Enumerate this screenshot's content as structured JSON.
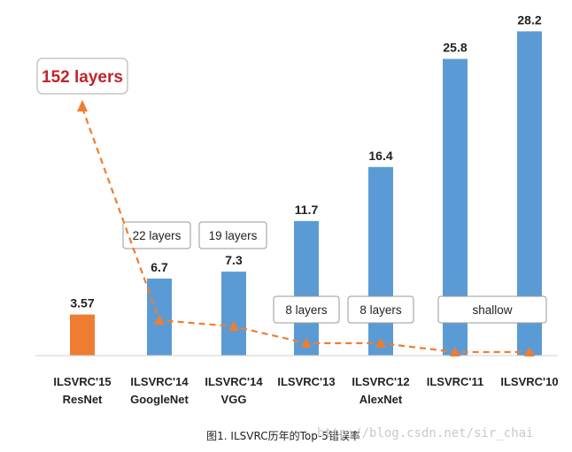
{
  "chart_data": {
    "type": "bar",
    "categories": [
      [
        "ILSVRC'15",
        "ResNet"
      ],
      [
        "ILSVRC'14",
        "GoogleNet"
      ],
      [
        "ILSVRC'14",
        "VGG"
      ],
      [
        "ILSVRC'13"
      ],
      [
        "ILSVRC'12",
        "AlexNet"
      ],
      [
        "ILSVRC'11"
      ],
      [
        "ILSVRC'10"
      ]
    ],
    "values": [
      3.57,
      6.7,
      7.3,
      11.7,
      16.4,
      25.8,
      28.2
    ],
    "value_labels": [
      "3.57",
      "6.7",
      "7.3",
      "11.7",
      "16.4",
      "25.8",
      "28.2"
    ],
    "bar_colors": [
      "#ee7d32",
      "#5b9bd5",
      "#5b9bd5",
      "#5b9bd5",
      "#5b9bd5",
      "#5b9bd5",
      "#5b9bd5"
    ],
    "layer_annotations": [
      "152 layers",
      "22 layers",
      "19 layers",
      "8 layers",
      "8 layers",
      "shallow"
    ],
    "ylim": [
      0,
      30
    ],
    "grid": false,
    "legend": "none",
    "line_color": "#ee7d32",
    "caption": "图1. ILSVRC历年的Top-5错误率",
    "watermark": "http://blog.csdn.net/sir_chai"
  }
}
